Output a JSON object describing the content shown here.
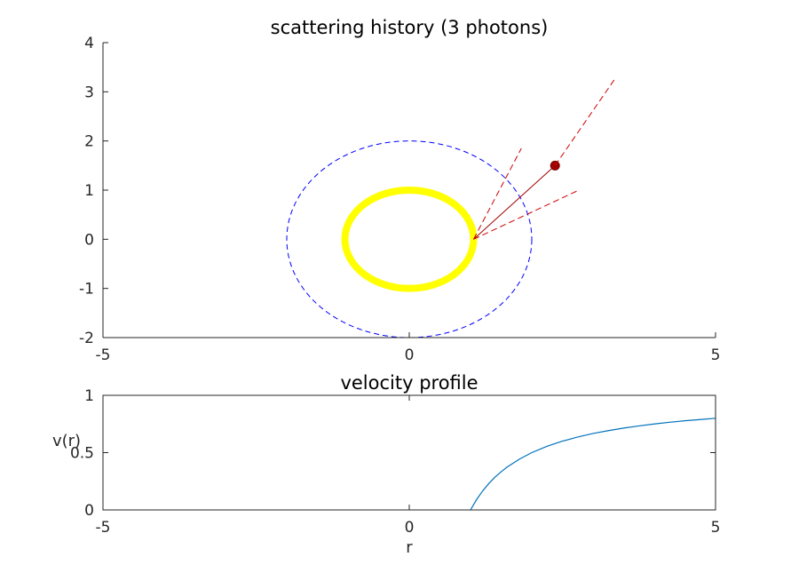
{
  "chart_data": [
    {
      "type": "scatter",
      "title": "scattering history (3 photons)",
      "xlabel": "",
      "ylabel": "",
      "xlim": [
        -5,
        5
      ],
      "ylim": [
        -2,
        4
      ],
      "xticks": [
        -5,
        0,
        5
      ],
      "xtick_labels": [
        "-5",
        "0",
        "5"
      ],
      "yticks": [
        -2,
        -1,
        0,
        1,
        2,
        3,
        4
      ],
      "ytick_labels": [
        "-2",
        "-1",
        "0",
        "1",
        "2",
        "3",
        "4"
      ],
      "grid": false,
      "series": [
        {
          "name": "inner ring",
          "kind": "ellipse",
          "cx": 0,
          "cy": 0,
          "rx": 1.05,
          "ry": 1.0,
          "color": "#ffff00",
          "style": "solid-thick"
        },
        {
          "name": "outer boundary",
          "kind": "circle",
          "cx": 0,
          "cy": 0,
          "r": 2.0,
          "color": "#0000ff",
          "style": "dashed"
        },
        {
          "name": "photon path",
          "kind": "segment",
          "from": [
            1.05,
            0.0
          ],
          "to": [
            2.38,
            1.5
          ],
          "color": "#a00000",
          "style": "solid"
        },
        {
          "name": "photon position",
          "kind": "point",
          "x": 2.38,
          "y": 1.5,
          "color": "#a00000"
        },
        {
          "name": "ray 1",
          "kind": "segment",
          "from": [
            1.05,
            0.0
          ],
          "to": [
            1.83,
            1.85
          ],
          "color": "#cc0000",
          "style": "dashed"
        },
        {
          "name": "ray 2",
          "kind": "segment",
          "from": [
            1.05,
            0.0
          ],
          "to": [
            2.77,
            1.0
          ],
          "color": "#cc0000",
          "style": "dashed"
        },
        {
          "name": "ray 3",
          "kind": "segment",
          "from": [
            2.38,
            1.5
          ],
          "to": [
            3.35,
            3.25
          ],
          "color": "#cc0000",
          "style": "dashed"
        }
      ]
    },
    {
      "type": "line",
      "title": "velocity profile",
      "xlabel": "r",
      "ylabel": "v(r)",
      "xlim": [
        -5,
        5
      ],
      "ylim": [
        0,
        1
      ],
      "xticks": [
        -5,
        0,
        5
      ],
      "xtick_labels": [
        "-5",
        "0",
        "5"
      ],
      "yticks": [
        0,
        0.5,
        1
      ],
      "ytick_labels": [
        "0",
        "0.5",
        "1"
      ],
      "grid": false,
      "series": [
        {
          "name": "v(r)",
          "color": "#0072bd",
          "x": [
            1.0,
            1.1,
            1.2,
            1.3,
            1.4,
            1.5,
            1.6,
            1.8,
            2.0,
            2.25,
            2.5,
            2.75,
            3.0,
            3.25,
            3.5,
            3.75,
            4.0,
            4.25,
            4.5,
            4.75,
            5.0
          ],
          "y": [
            0.0,
            0.091,
            0.167,
            0.231,
            0.286,
            0.333,
            0.375,
            0.444,
            0.5,
            0.556,
            0.6,
            0.636,
            0.667,
            0.692,
            0.714,
            0.733,
            0.75,
            0.765,
            0.778,
            0.789,
            0.8
          ]
        }
      ]
    }
  ]
}
